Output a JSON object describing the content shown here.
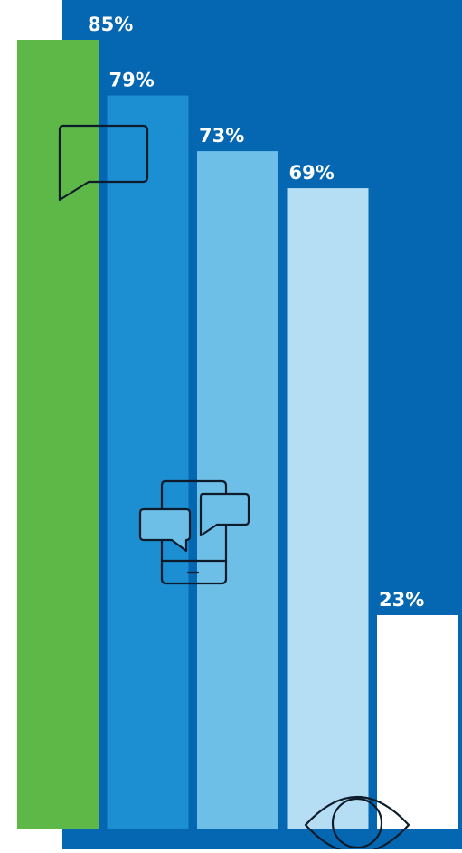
{
  "chart_data": {
    "type": "bar",
    "categories": [
      "",
      "",
      "",
      "",
      ""
    ],
    "values": [
      85,
      79,
      73,
      69,
      23
    ],
    "value_labels": [
      "85%",
      "79%",
      "73%",
      "69%",
      "23%"
    ],
    "title": "",
    "xlabel": "",
    "ylabel": "",
    "ylim": [
      0,
      100
    ],
    "grid": false,
    "legend": "none",
    "bar_colors": [
      "#5db847",
      "#1b8fd2",
      "#6dbfe8",
      "#b5def4",
      "#ffffff"
    ],
    "background_color": "#0567b1"
  },
  "icons": {
    "speech_bubble": "speech-bubble-icon",
    "phone_chat": "phone-chat-icon",
    "eye": "eye-icon"
  }
}
